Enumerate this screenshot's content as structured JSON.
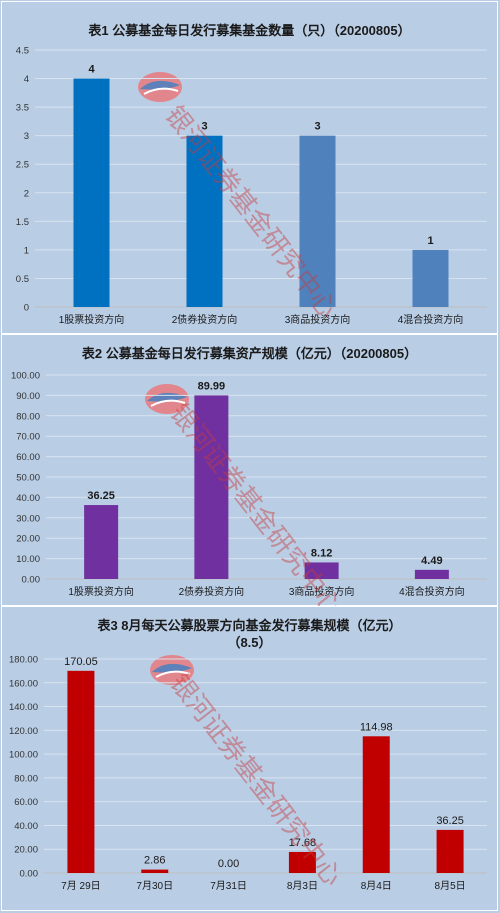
{
  "watermark_text": "银河证券基金研究中心",
  "colors": {
    "background": "#b9cde5",
    "chart1_bars": [
      "#0070c0",
      "#0070c0",
      "#4f81bd",
      "#4f81bd"
    ],
    "chart2_bars": "#7030a0",
    "chart3_bars": "#c00000"
  },
  "chart_data": [
    {
      "type": "bar",
      "title": "表1  公募基金每日发行募集基金数量（只）（20200805）",
      "categories": [
        "1股票投资方向",
        "2债券投资方向",
        "3商品投资方向",
        "4混合投资方向"
      ],
      "values": [
        4,
        3,
        3,
        1
      ],
      "data_labels": [
        "4",
        "3",
        "3",
        "1"
      ],
      "ylim": [
        0,
        4.5
      ],
      "yticks": [
        "0",
        "0.5",
        "1",
        "1.5",
        "2",
        "2.5",
        "3",
        "3.5",
        "4",
        "4.5"
      ],
      "grid": true
    },
    {
      "type": "bar",
      "title": "表2  公募基金每日发行募集资产规模（亿元）（20200805）",
      "categories": [
        "1股票投资方向",
        "2债券投资方向",
        "3商品投资方向",
        "4混合投资方向"
      ],
      "values": [
        36.25,
        89.99,
        8.12,
        4.49
      ],
      "data_labels": [
        "36.25",
        "89.99",
        "8.12",
        "4.49"
      ],
      "ylim": [
        0,
        100
      ],
      "yticks": [
        "0.00",
        "10.00",
        "20.00",
        "30.00",
        "40.00",
        "50.00",
        "60.00",
        "70.00",
        "80.00",
        "90.00",
        "100.00"
      ],
      "grid": true
    },
    {
      "type": "bar",
      "title": "表3   8月每天公募股票方向基金发行募集规模（亿元）",
      "subtitle": "（8.5）",
      "categories": [
        "7月 29日",
        "7月30日",
        "7月31日",
        "8月3日",
        "8月4日",
        "8月5日"
      ],
      "values": [
        170.05,
        2.86,
        0.0,
        17.68,
        114.98,
        36.25
      ],
      "data_labels": [
        "170.05",
        "2.86",
        "0.00",
        "17.68",
        "114.98",
        "36.25"
      ],
      "ylim": [
        0,
        180
      ],
      "yticks": [
        "0.00",
        "20.00",
        "40.00",
        "60.00",
        "80.00",
        "100.00",
        "120.00",
        "140.00",
        "160.00",
        "180.00"
      ],
      "grid": true
    }
  ]
}
